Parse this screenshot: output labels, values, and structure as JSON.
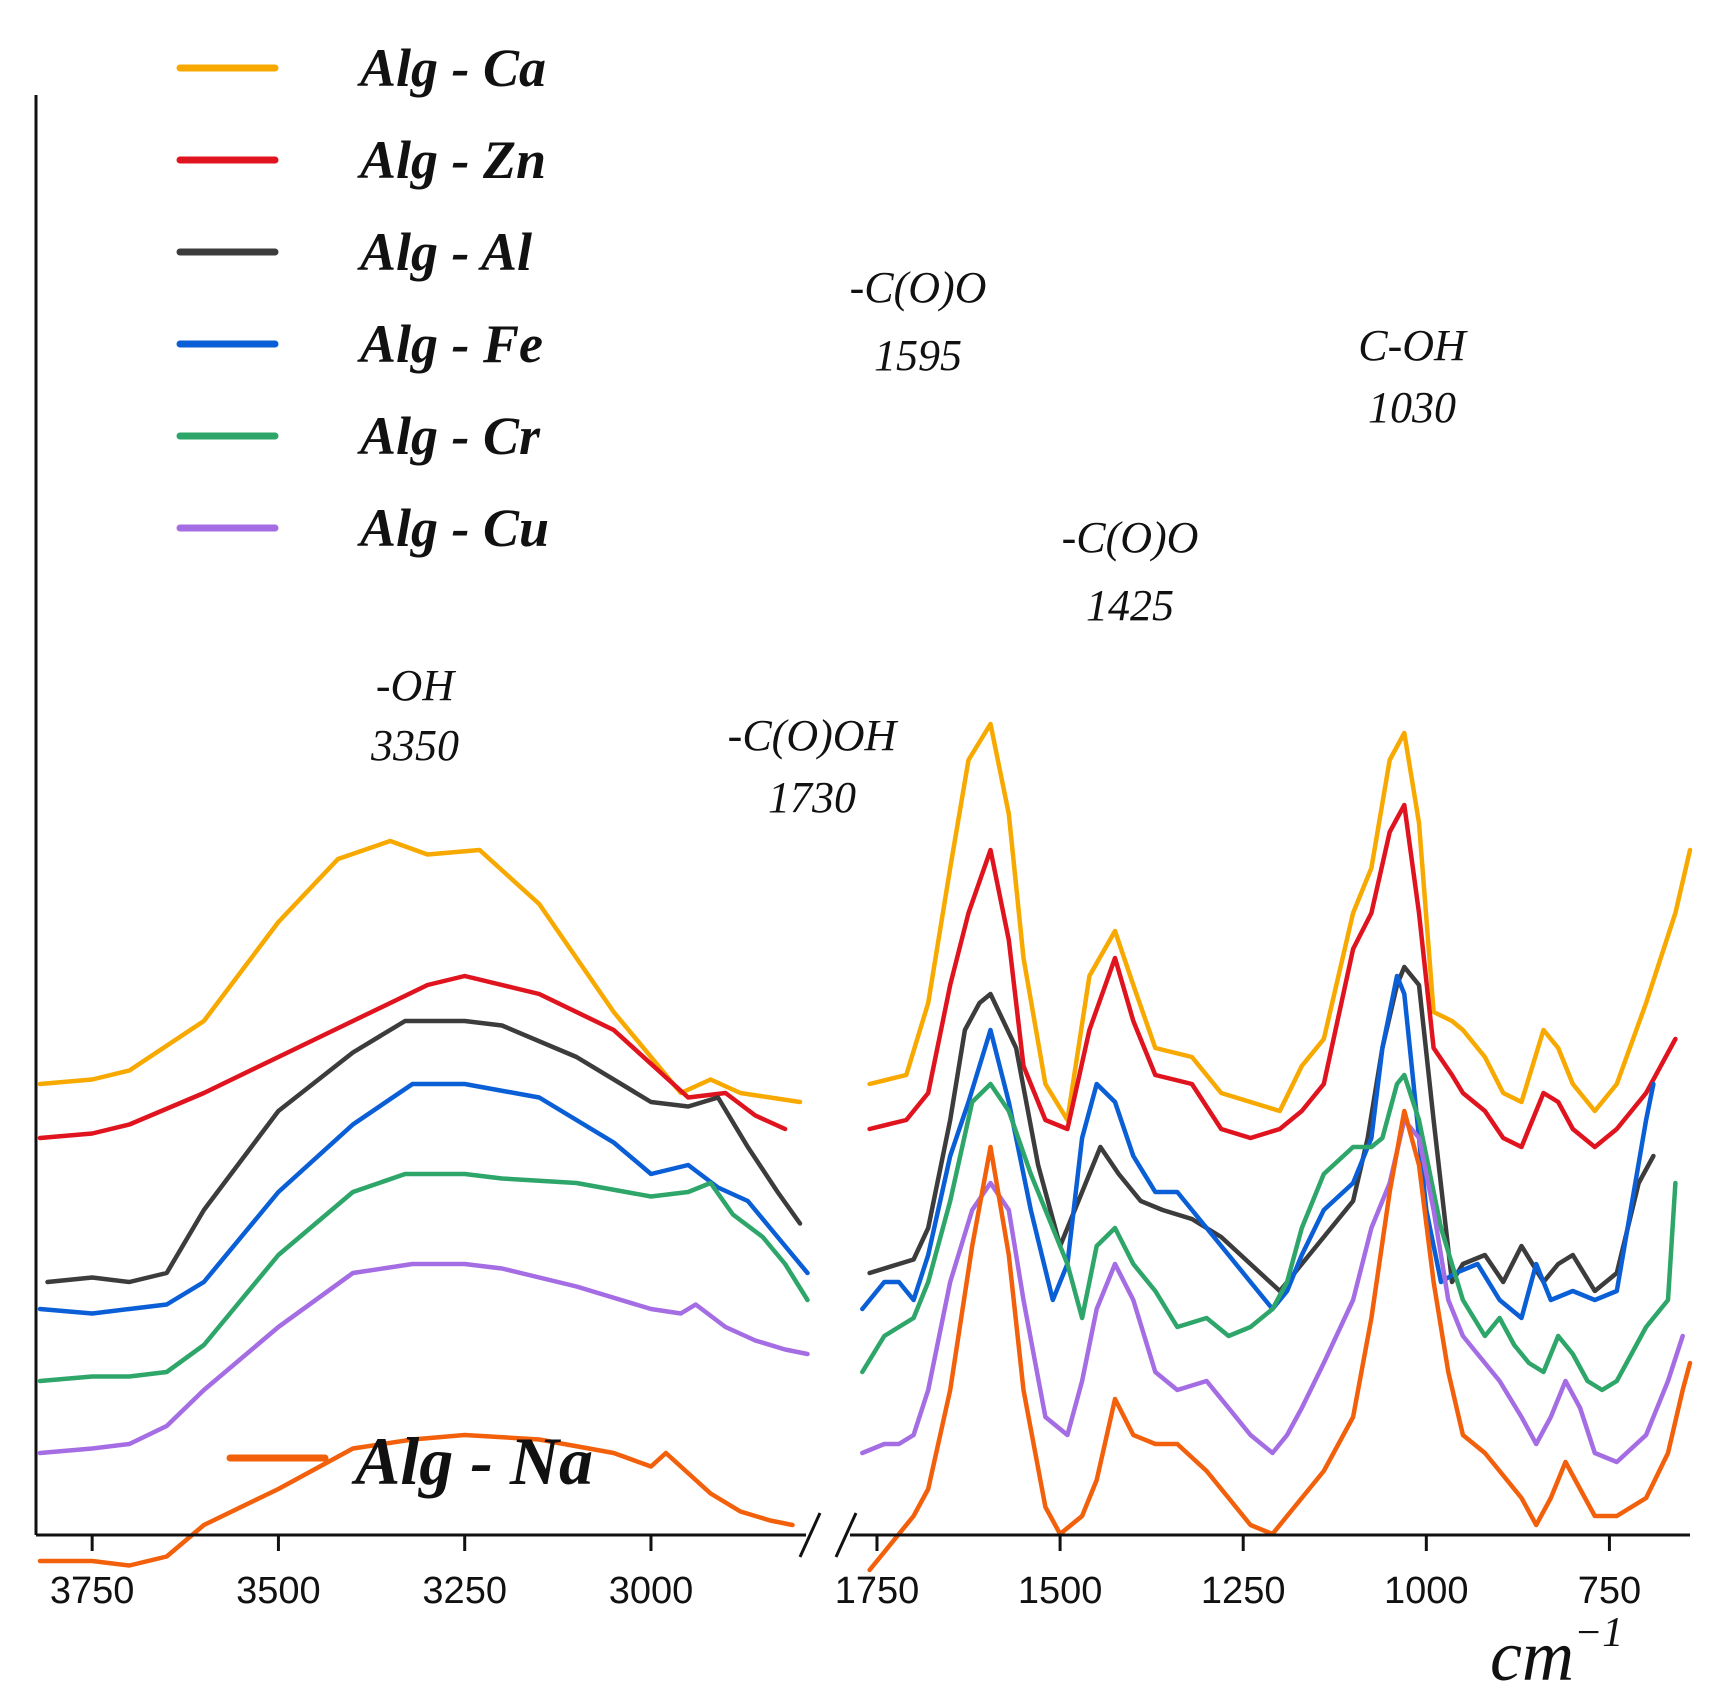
{
  "chart_data": {
    "type": "line",
    "title": "",
    "xlabel": "cm",
    "xlabel_superscript": "−1",
    "ylabel": "",
    "x_axis": {
      "reversed": true,
      "broken": true,
      "segments": [
        {
          "range": [
            3820,
            2800
          ],
          "ticks": [
            3750,
            3500,
            3250,
            3000
          ]
        },
        {
          "range": [
            1780,
            640
          ],
          "ticks": [
            1750,
            1500,
            1250,
            1000,
            750
          ]
        }
      ],
      "tick_labels": [
        "3750",
        "3500",
        "3250",
        "3000",
        "1750",
        "1500",
        "1250",
        "1000",
        "750"
      ]
    },
    "y_axis": {
      "range": [
        0,
        100
      ],
      "ticks_shown": false
    },
    "legend": [
      {
        "label": "Alg - Ca",
        "color": "#F7A900"
      },
      {
        "label": "Alg - Zn",
        "color": "#E0141E"
      },
      {
        "label": "Alg - Al",
        "color": "#3C3C3C"
      },
      {
        "label": "Alg - Fe",
        "color": "#0A5FD6"
      },
      {
        "label": "Alg - Cr",
        "color": "#2EA66A"
      },
      {
        "label": "Alg - Cu",
        "color": "#A56DE3"
      },
      {
        "label": "Alg - Na",
        "color": "#F2600C"
      }
    ],
    "annotations": [
      {
        "line1": "-OH",
        "line2": "3350",
        "x": 3350
      },
      {
        "line1": "-C(O)OH",
        "line2": "1730",
        "x": 1730
      },
      {
        "line1": "-C(O)O",
        "line2": "1595",
        "x": 1595
      },
      {
        "line1": "-C(O)O",
        "line2": "1425",
        "x": 1425
      },
      {
        "line1": "C-OH",
        "line2": "1030",
        "x": 1030
      }
    ],
    "series": [
      {
        "name": "Alg - Ca",
        "color": "#F7A900",
        "high": {
          "x": [
            3820,
            3750,
            3700,
            3600,
            3500,
            3420,
            3350,
            3300,
            3230,
            3150,
            3050,
            2960,
            2920,
            2880,
            2840,
            2800
          ],
          "y": [
            44,
            44.5,
            45.5,
            51,
            62,
            69,
            71,
            69.5,
            70,
            64,
            52,
            43,
            44.5,
            43,
            42.5,
            42
          ]
        },
        "low": {
          "x": [
            1760,
            1710,
            1680,
            1650,
            1625,
            1595,
            1570,
            1550,
            1520,
            1490,
            1460,
            1425,
            1400,
            1370,
            1320,
            1280,
            1240,
            1200,
            1170,
            1140,
            1100,
            1075,
            1050,
            1030,
            1010,
            990,
            965,
            950,
            920,
            895,
            870,
            840,
            820,
            800,
            770,
            740,
            700,
            660,
            640
          ],
          "y": [
            44,
            45,
            53,
            68,
            80,
            84,
            74,
            58,
            44,
            40,
            56,
            61,
            55,
            48,
            47,
            43,
            42,
            41,
            46,
            49,
            63,
            68,
            80,
            83,
            73,
            52,
            51,
            50,
            47,
            43,
            42,
            50,
            48,
            44,
            41,
            44,
            53,
            63,
            70
          ]
        }
      },
      {
        "name": "Alg - Zn",
        "color": "#E0141E",
        "high": {
          "x": [
            3820,
            3750,
            3700,
            3600,
            3500,
            3400,
            3300,
            3250,
            3150,
            3050,
            2950,
            2900,
            2860,
            2820
          ],
          "y": [
            38,
            38.5,
            39.5,
            43,
            47,
            51,
            55,
            56,
            54,
            50,
            42.5,
            43,
            40.5,
            39
          ]
        },
        "low": {
          "x": [
            1760,
            1710,
            1680,
            1650,
            1625,
            1595,
            1570,
            1550,
            1520,
            1490,
            1460,
            1425,
            1400,
            1370,
            1320,
            1280,
            1240,
            1200,
            1170,
            1140,
            1100,
            1075,
            1050,
            1030,
            1010,
            990,
            965,
            950,
            920,
            895,
            870,
            840,
            820,
            800,
            770,
            740,
            700,
            660
          ],
          "y": [
            39,
            40,
            43,
            55,
            63,
            70,
            60,
            46,
            40,
            39,
            50,
            58,
            51,
            45,
            44,
            39,
            38,
            39,
            41,
            44,
            59,
            63,
            72,
            75,
            63,
            48,
            45,
            43,
            41,
            38,
            37,
            43,
            42,
            39,
            37,
            39,
            43,
            49
          ]
        }
      },
      {
        "name": "Alg - Al",
        "color": "#3C3C3C",
        "high": {
          "x": [
            3810,
            3750,
            3700,
            3650,
            3600,
            3500,
            3400,
            3330,
            3250,
            3200,
            3100,
            3000,
            2950,
            2910,
            2870,
            2830,
            2800
          ],
          "y": [
            22,
            22.5,
            22,
            23,
            30,
            41,
            47.5,
            51,
            51,
            50.5,
            47,
            42,
            41.5,
            42.5,
            37,
            32,
            28.5
          ]
        },
        "low": {
          "x": [
            1760,
            1720,
            1700,
            1680,
            1650,
            1630,
            1610,
            1595,
            1560,
            1530,
            1500,
            1470,
            1445,
            1420,
            1390,
            1360,
            1320,
            1280,
            1240,
            1200,
            1170,
            1140,
            1100,
            1080,
            1060,
            1040,
            1030,
            1010,
            990,
            965,
            950,
            920,
            895,
            870,
            840,
            820,
            800,
            770,
            740,
            710,
            690
          ],
          "y": [
            23,
            24,
            24.5,
            28,
            40,
            50,
            53,
            54,
            48,
            35,
            26,
            32,
            37,
            34,
            31,
            30,
            29,
            27,
            24,
            21,
            24,
            27,
            31,
            38,
            48,
            55,
            57,
            55,
            40,
            22,
            24,
            25,
            22,
            26,
            22,
            24,
            25,
            21,
            23,
            33,
            36
          ]
        }
      },
      {
        "name": "Alg - Fe",
        "color": "#0A5FD6",
        "high": {
          "x": [
            3820,
            3750,
            3700,
            3650,
            3600,
            3500,
            3400,
            3320,
            3250,
            3150,
            3050,
            3000,
            2950,
            2910,
            2870,
            2830,
            2790
          ],
          "y": [
            19,
            18.5,
            19,
            19.5,
            22,
            32,
            39.5,
            44,
            44,
            42.5,
            37.5,
            34,
            35,
            32.5,
            31,
            27,
            23
          ]
        },
        "low": {
          "x": [
            1770,
            1740,
            1720,
            1700,
            1680,
            1650,
            1625,
            1610,
            1595,
            1570,
            1540,
            1510,
            1490,
            1470,
            1450,
            1425,
            1400,
            1370,
            1340,
            1300,
            1270,
            1240,
            1210,
            1190,
            1170,
            1140,
            1100,
            1075,
            1060,
            1050,
            1040,
            1030,
            1020,
            1000,
            980,
            960,
            930,
            900,
            870,
            850,
            830,
            800,
            770,
            740,
            700,
            690
          ],
          "y": [
            19,
            22,
            22,
            20,
            25,
            36,
            42,
            46,
            50,
            42,
            30,
            20,
            24,
            38,
            44,
            42,
            36,
            32,
            32,
            28,
            25,
            22,
            19,
            21,
            25,
            30,
            33,
            38,
            48,
            52,
            56,
            54,
            46,
            30,
            22,
            23,
            24,
            20,
            18,
            24,
            20,
            21,
            20,
            21,
            40,
            44
          ]
        }
      },
      {
        "name": "Alg - Cr",
        "color": "#2EA66A",
        "high": {
          "x": [
            3820,
            3750,
            3700,
            3650,
            3600,
            3500,
            3400,
            3330,
            3250,
            3200,
            3100,
            3000,
            2950,
            2920,
            2890,
            2850,
            2820,
            2790
          ],
          "y": [
            11,
            11.5,
            11.5,
            12,
            15,
            25,
            32,
            34,
            34,
            33.5,
            33,
            31.5,
            32,
            33,
            29.5,
            27,
            24,
            20
          ]
        },
        "low": {
          "x": [
            1770,
            1740,
            1720,
            1700,
            1680,
            1650,
            1620,
            1595,
            1570,
            1540,
            1510,
            1490,
            1470,
            1450,
            1425,
            1400,
            1370,
            1340,
            1300,
            1270,
            1240,
            1210,
            1190,
            1170,
            1140,
            1100,
            1075,
            1060,
            1040,
            1030,
            1010,
            980,
            950,
            920,
            900,
            880,
            860,
            840,
            820,
            800,
            780,
            760,
            740,
            700,
            670,
            660
          ],
          "y": [
            12,
            16,
            17,
            18,
            22,
            31,
            42,
            44,
            41,
            34,
            28,
            24,
            18,
            26,
            28,
            24,
            21,
            17,
            18,
            16,
            17,
            19,
            22,
            28,
            34,
            37,
            37,
            38,
            44,
            45,
            40,
            28,
            20,
            16,
            18,
            15,
            13,
            12,
            16,
            14,
            11,
            10,
            11,
            17,
            20,
            33
          ]
        }
      },
      {
        "name": "Alg - Cu",
        "color": "#A56DE3",
        "high": {
          "x": [
            3820,
            3750,
            3700,
            3650,
            3600,
            3500,
            3400,
            3320,
            3250,
            3200,
            3100,
            3000,
            2960,
            2940,
            2900,
            2860,
            2820,
            2790
          ],
          "y": [
            3,
            3.5,
            4,
            6,
            10,
            17,
            23,
            24,
            24,
            23.5,
            21.5,
            19,
            18.5,
            19.5,
            17,
            15.5,
            14.5,
            14
          ]
        },
        "low": {
          "x": [
            1770,
            1740,
            1720,
            1700,
            1680,
            1650,
            1620,
            1595,
            1570,
            1550,
            1520,
            1490,
            1470,
            1450,
            1425,
            1400,
            1370,
            1340,
            1300,
            1270,
            1240,
            1210,
            1190,
            1170,
            1140,
            1100,
            1075,
            1050,
            1030,
            1010,
            990,
            970,
            950,
            920,
            900,
            870,
            850,
            830,
            810,
            790,
            770,
            740,
            700,
            670,
            650
          ],
          "y": [
            3,
            4,
            4,
            5,
            10,
            22,
            30,
            33,
            30,
            20,
            7,
            5,
            11,
            19,
            24,
            20,
            12,
            10,
            11,
            8,
            5,
            3,
            5,
            8,
            13,
            20,
            28,
            33,
            40,
            38,
            30,
            20,
            16,
            13,
            11,
            7,
            4,
            7,
            11,
            8,
            3,
            2,
            5,
            11,
            16
          ]
        }
      },
      {
        "name": "Alg - Na",
        "color": "#F2600C",
        "high": {
          "x": [
            3820,
            3750,
            3700,
            3650,
            3600,
            3500,
            3400,
            3320,
            3250,
            3150,
            3050,
            3000,
            2980,
            2960,
            2920,
            2880,
            2840,
            2810
          ],
          "y": [
            -9,
            -9,
            -9.5,
            -8.5,
            -5,
            -1,
            3.5,
            4.5,
            5,
            4.5,
            3,
            1.5,
            3,
            1.5,
            -1.5,
            -3.5,
            -4.5,
            -5
          ]
        },
        "low": {
          "x": [
            1760,
            1740,
            1720,
            1700,
            1680,
            1650,
            1620,
            1595,
            1570,
            1550,
            1520,
            1500,
            1470,
            1450,
            1425,
            1400,
            1370,
            1340,
            1300,
            1270,
            1240,
            1210,
            1190,
            1170,
            1140,
            1100,
            1075,
            1050,
            1030,
            1010,
            990,
            970,
            950,
            920,
            900,
            870,
            850,
            830,
            810,
            790,
            770,
            740,
            700,
            670,
            650,
            640
          ],
          "y": [
            -10,
            -8,
            -6,
            -4,
            -1,
            10,
            26,
            37,
            25,
            10,
            -3,
            -6,
            -4,
            0,
            9,
            5,
            4,
            4,
            1,
            -2,
            -5,
            -6,
            -4,
            -2,
            1,
            7,
            18,
            32,
            41,
            35,
            22,
            12,
            5,
            3,
            1,
            -2,
            -5,
            -2,
            2,
            -1,
            -4,
            -4,
            -2,
            3,
            10,
            13
          ]
        }
      }
    ]
  }
}
